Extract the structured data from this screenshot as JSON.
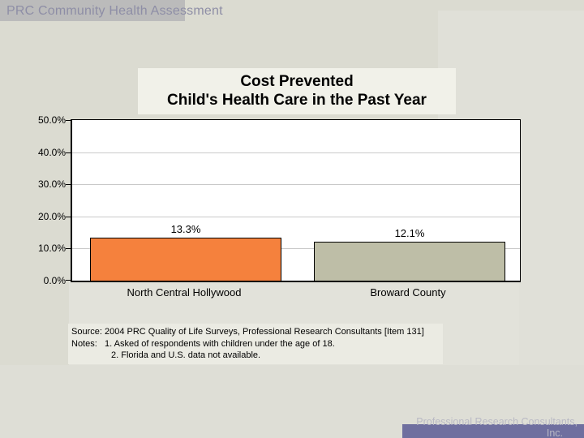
{
  "slide": {
    "header": {
      "title": "PRC Community Health Assessment"
    },
    "footer": {
      "line1": "Professional Research Consultants,",
      "line2": "Inc."
    }
  },
  "chart_data": {
    "type": "bar",
    "title_lines": [
      "Cost Prevented",
      "Child's Health Care in the Past Year"
    ],
    "categories": [
      "North Central Hollywood",
      "Broward County"
    ],
    "values": [
      13.3,
      12.1
    ],
    "value_labels": [
      "13.3%",
      "12.1%"
    ],
    "bar_colors": [
      "#F5813D",
      "#BEBEA7"
    ],
    "ylim": [
      0,
      50
    ],
    "yticks": [
      {
        "value": 50,
        "label": "50.0%"
      },
      {
        "value": 40,
        "label": "40.0%"
      },
      {
        "value": 30,
        "label": "30.0%"
      },
      {
        "value": 20,
        "label": "20.0%"
      },
      {
        "value": 10,
        "label": "10.0%"
      },
      {
        "value": 0,
        "label": "0.0%"
      }
    ],
    "grid": true,
    "legend": "none",
    "source_label": "Source:",
    "source": "2004 PRC Quality of Life Surveys, Professional Research Consultants [Item 131]",
    "notes_label": "Notes:",
    "notes": [
      "1. Asked of respondents with children under the age of 18.",
      "2. Florida and U.S. data not available."
    ]
  },
  "colors": {
    "slide_background": "#DBDBD1",
    "accent_orange": "#F5813D",
    "accent_gray_green": "#BEBEA7",
    "footer_band": "#6F6F9F"
  }
}
